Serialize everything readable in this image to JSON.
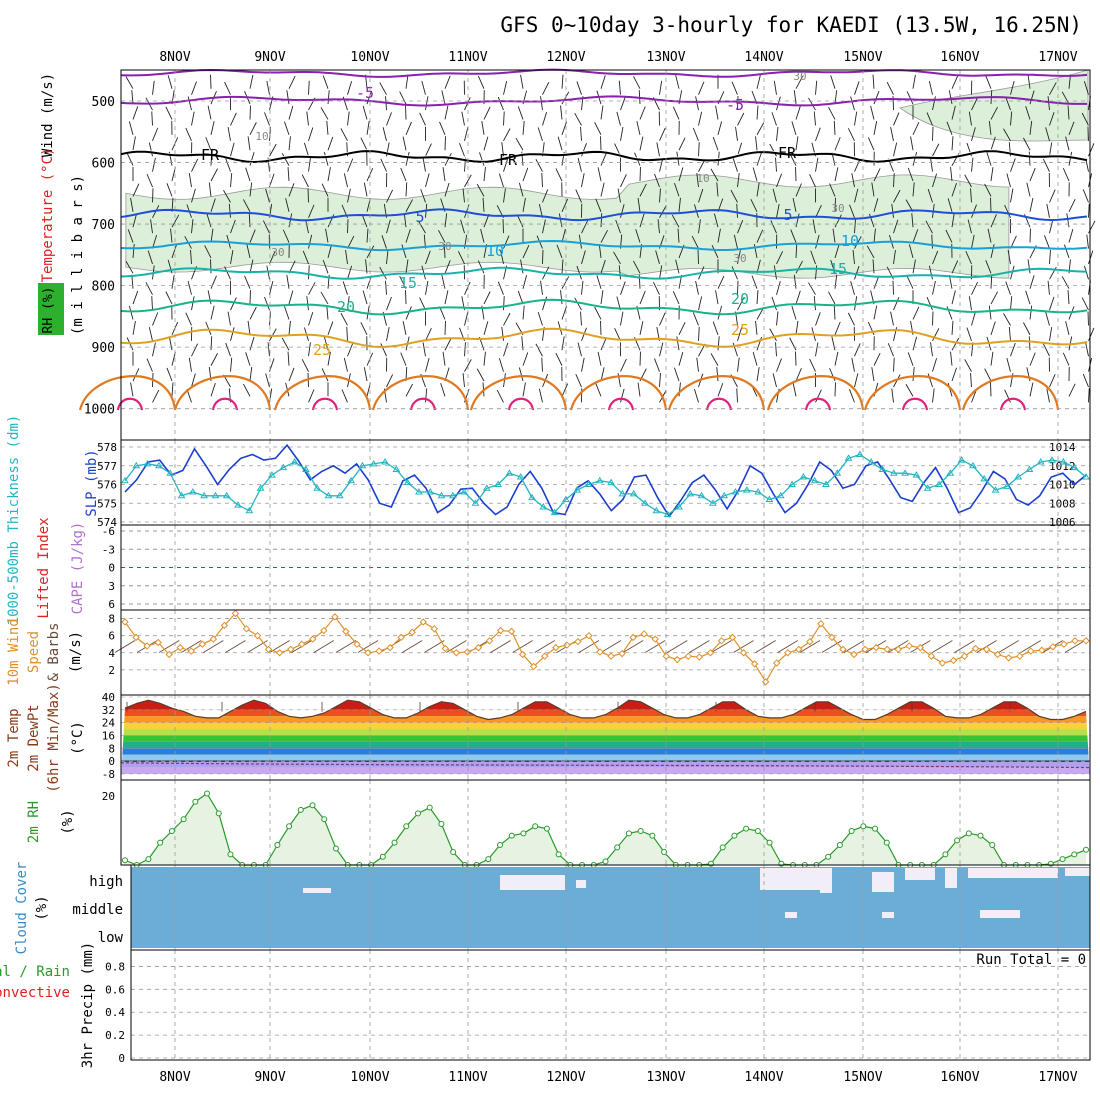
{
  "title": "GFS 0~10day 3-hourly for KAEDI (13.5W, 16.25N)",
  "days": [
    "8NOV",
    "9NOV",
    "10NOV",
    "11NOV",
    "12NOV",
    "13NOV",
    "14NOV",
    "15NOV",
    "16NOV",
    "17NOV"
  ],
  "colors": {
    "frame": "#000000",
    "grid": "#9a9a9a",
    "rh_fill": "#dbefd9",
    "temp_5_upper": "#8a1fb0",
    "temp_freeze": "#000000",
    "temp_5": "#1f4fd8",
    "temp_10": "#1aa0d8",
    "temp_15": "#18b3a8",
    "temp_20": "#19b38a",
    "temp_25": "#e0a020",
    "temp_30": "#e07a20",
    "temp_35": "#e0207a",
    "slp": "#1a3fd0",
    "thickness": "#23b5c0",
    "lifted": "#e02020",
    "wind10": "#e0902a",
    "rh2m": "#2a9a2a",
    "cloud": "#6badd6",
    "cloud_gap": "#f2eef7"
  },
  "panels": {
    "profile": {
      "ylabel_wind": "Wind (m/s)",
      "ylabel_temp": "Temperature (°C)",
      "ylabel_rh": "RH (%)",
      "ylabel_p": "(m i l l i b a r s)",
      "ticks": [
        "500",
        "600",
        "700",
        "800",
        "900",
        "1000"
      ],
      "isotherm_labels": [
        {
          "text": "-5",
          "level": "upper"
        },
        {
          "text": "-5",
          "level": "upper"
        },
        {
          "text": "FR",
          "level": "freeze"
        },
        {
          "text": "FR",
          "level": "freeze"
        },
        {
          "text": "FR",
          "level": "freeze"
        },
        {
          "text": "5",
          "level": "5"
        },
        {
          "text": "5",
          "level": "5"
        },
        {
          "text": "10",
          "level": "10"
        },
        {
          "text": "10",
          "level": "10"
        },
        {
          "text": "15",
          "level": "15"
        },
        {
          "text": "15",
          "level": "15"
        },
        {
          "text": "20",
          "level": "20"
        },
        {
          "text": "20",
          "level": "20"
        },
        {
          "text": "25",
          "level": "25"
        },
        {
          "text": "25",
          "level": "25"
        }
      ],
      "rh_labels": [
        "30",
        "10",
        "10",
        "30",
        "30",
        "30",
        "30"
      ]
    },
    "slp_thickness": {
      "ylabel_thickness": "1000-500mb Thickness (dm)",
      "ylabel_slp": "SLP (mb)",
      "left_ticks": [
        "578",
        "577",
        "576",
        "575",
        "574"
      ],
      "right_ticks": [
        "1014",
        "1012",
        "1010",
        "1008",
        "1006"
      ]
    },
    "stability": {
      "ylabel_li": "Lifted Index",
      "ylabel_cape": "CAPE (J/kg)",
      "ticks": [
        "-6",
        "-3",
        "0",
        "3",
        "6"
      ]
    },
    "wind10m": {
      "ylabel1": "10m Wind",
      "ylabel2": "Speed",
      "ylabel3": "& Barbs",
      "unit": "(m/s)",
      "ticks": [
        "8",
        "6",
        "4",
        "2"
      ]
    },
    "temp2m": {
      "ylabel1": "2m Temp",
      "ylabel2": "2m DewPt",
      "ylabel3": "(6hr Min/Max)",
      "unit": "(°C)",
      "ticks": [
        "40",
        "32",
        "24",
        "16",
        "8",
        "0",
        "-8"
      ]
    },
    "rh2m": {
      "ylabel": "2m RH",
      "unit": "(%)",
      "ticks": [
        "20"
      ]
    },
    "cloud": {
      "ylabel": "Cloud Cover",
      "unit": "(%)",
      "levels": [
        "high",
        "middle",
        "low"
      ]
    },
    "precip": {
      "ylabel1": "Total / Rain",
      "ylabel2": "Convective",
      "ylabel3": "3hr Precip (mm)",
      "run_total": "Run Total = 0",
      "ticks": [
        "0.8",
        "0.6",
        "0.4",
        "0.2",
        "0"
      ]
    }
  },
  "chart_data": [
    {
      "type": "line",
      "title": "SLP (mb) and 1000-500mb Thickness (dm)",
      "x_unit": "3-hourly steps from ~7.5 NOV",
      "series": [
        {
          "name": "SLP (mb)",
          "values": [
            1009.2,
            1010.5,
            1012.4,
            1012.6,
            1011.0,
            1011.5,
            1013.8,
            1012.0,
            1010.0,
            1011.6,
            1012.8,
            1013.2,
            1012.6,
            1012.8,
            1014.2,
            1012.5,
            1010.5,
            1011.4,
            1012.0,
            1011.2,
            1012.2,
            1010.5,
            1008.0,
            1007.6,
            1010.4,
            1011.0,
            1009.6,
            1007.0,
            1007.8,
            1009.5,
            1009.6,
            1008.0,
            1006.8,
            1007.6,
            1010.0,
            1011.4,
            1009.6,
            1007.0,
            1006.8,
            1009.6,
            1010.4,
            1009.0,
            1007.2,
            1008.4,
            1010.8,
            1011.0,
            1008.6,
            1006.6,
            1008.3,
            1010.2,
            1011.0,
            1009.4,
            1007.4,
            1009.4,
            1012.0,
            1011.2,
            1009.0,
            1007.0,
            1008.0,
            1010.0,
            1012.4,
            1011.5,
            1009.6,
            1010.0,
            1012.0,
            1012.4,
            1010.6,
            1008.6,
            1008.2,
            1010.2,
            1011.8,
            1009.6,
            1007.0,
            1007.5,
            1009.3,
            1011.4,
            1010.6,
            1008.4,
            1007.8,
            1008.8,
            1010.8,
            1011.2,
            1010.0,
            1011.0
          ]
        },
        {
          "name": "Thickness (dm)",
          "values": [
            576.2,
            577.0,
            577.1,
            577.0,
            576.6,
            575.4,
            575.6,
            575.4,
            575.4,
            575.4,
            574.9,
            574.6,
            575.8,
            576.5,
            576.9,
            577.2,
            576.8,
            575.8,
            575.4,
            575.4,
            576.2,
            577.0,
            577.1,
            577.2,
            576.8,
            576.1,
            575.6,
            575.6,
            575.4,
            575.4,
            575.6,
            575.0,
            575.8,
            576.0,
            576.6,
            576.4,
            575.3,
            574.8,
            574.5,
            575.2,
            575.7,
            576.0,
            576.2,
            576.1,
            575.5,
            575.5,
            575.0,
            574.6,
            574.4,
            574.8,
            575.5,
            575.4,
            575.0,
            575.4,
            575.6,
            575.7,
            575.6,
            575.2,
            575.4,
            576.0,
            576.4,
            576.2,
            576.0,
            576.6,
            577.4,
            577.6,
            577.2,
            576.8,
            576.6,
            576.6,
            576.5,
            575.8,
            576.0,
            576.6,
            577.3,
            577.0,
            576.3,
            575.7,
            575.9,
            576.4,
            576.8,
            577.2,
            577.3,
            577.2,
            576.9,
            576.4
          ]
        }
      ]
    },
    {
      "type": "line",
      "title": "10m Wind Speed (m/s)",
      "values": [
        7.6,
        5.8,
        4.8,
        5.2,
        3.8,
        4.6,
        4.2,
        5.0,
        5.6,
        7.2,
        8.6,
        6.8,
        6.0,
        4.4,
        4.0,
        4.4,
        5.0,
        5.6,
        6.6,
        8.2,
        6.5,
        5.0,
        4.0,
        4.2,
        4.6,
        5.8,
        6.4,
        7.6,
        6.8,
        4.5,
        4.0,
        4.1,
        4.6,
        5.4,
        6.6,
        6.5,
        3.8,
        2.4,
        3.6,
        4.6,
        4.9,
        5.3,
        6.0,
        4.1,
        3.6,
        3.9,
        5.8,
        6.2,
        5.6,
        3.6,
        3.2,
        3.6,
        3.5,
        4.0,
        5.4,
        5.8,
        4.0,
        2.7,
        0.6,
        2.8,
        4.0,
        4.4,
        5.3,
        7.4,
        5.8,
        4.4,
        3.8,
        4.4,
        4.6,
        4.4,
        4.4,
        4.8,
        4.6,
        3.6,
        2.8,
        3.1,
        3.6,
        4.5,
        4.4,
        3.8,
        3.4,
        3.6,
        4.2,
        4.3,
        4.7,
        5.0,
        5.4,
        5.4
      ]
    },
    {
      "type": "area",
      "title": "2m Temp (°C)",
      "values": [
        33,
        36,
        38,
        36,
        33,
        31,
        28,
        27,
        27,
        31,
        35,
        38,
        36,
        31,
        28,
        27,
        28,
        30,
        34,
        38,
        37,
        33,
        29,
        27,
        27,
        30,
        34,
        37,
        36,
        32,
        28,
        26,
        27,
        29,
        33,
        37,
        37,
        33,
        29,
        27,
        27,
        29,
        33,
        38,
        37,
        33,
        29,
        27,
        27,
        29,
        33,
        37,
        37,
        32,
        28,
        27,
        27,
        29,
        33,
        37,
        37,
        33,
        29,
        26,
        26,
        29,
        33,
        37,
        37,
        33,
        28,
        27,
        27,
        29,
        33,
        37,
        37,
        33,
        28,
        26,
        26,
        28,
        31
      ]
    },
    {
      "type": "area",
      "title": "2m RH (%)",
      "values": [
        14.5,
        14.0,
        14.6,
        16.0,
        17.0,
        18.0,
        19.5,
        20.2,
        18.5,
        15.0,
        13.2,
        13.8,
        14.0,
        15.8,
        17.4,
        18.8,
        19.2,
        18.0,
        15.5,
        13.0,
        12.8,
        13.6,
        14.8,
        16.0,
        17.4,
        18.5,
        19.0,
        17.6,
        15.2,
        13.0,
        13.0,
        14.6,
        15.8,
        16.6,
        16.8,
        17.4,
        17.2,
        15.0,
        13.2,
        12.6,
        13.5,
        14.4,
        15.6,
        16.8,
        17.0,
        16.6,
        15.2,
        13.6,
        13.0,
        12.8,
        14.2,
        15.6,
        16.6,
        17.2,
        17.0,
        16.0,
        14.2,
        13.0,
        12.8,
        13.4,
        14.8,
        15.8,
        17.0,
        17.4,
        17.2,
        16.0,
        14.0,
        13.0,
        12.8,
        13.6,
        15.0,
        16.2,
        16.8,
        16.6,
        15.8,
        14.0,
        12.6,
        12.8,
        13.6,
        14.2,
        14.6,
        15.0,
        15.4
      ]
    }
  ]
}
